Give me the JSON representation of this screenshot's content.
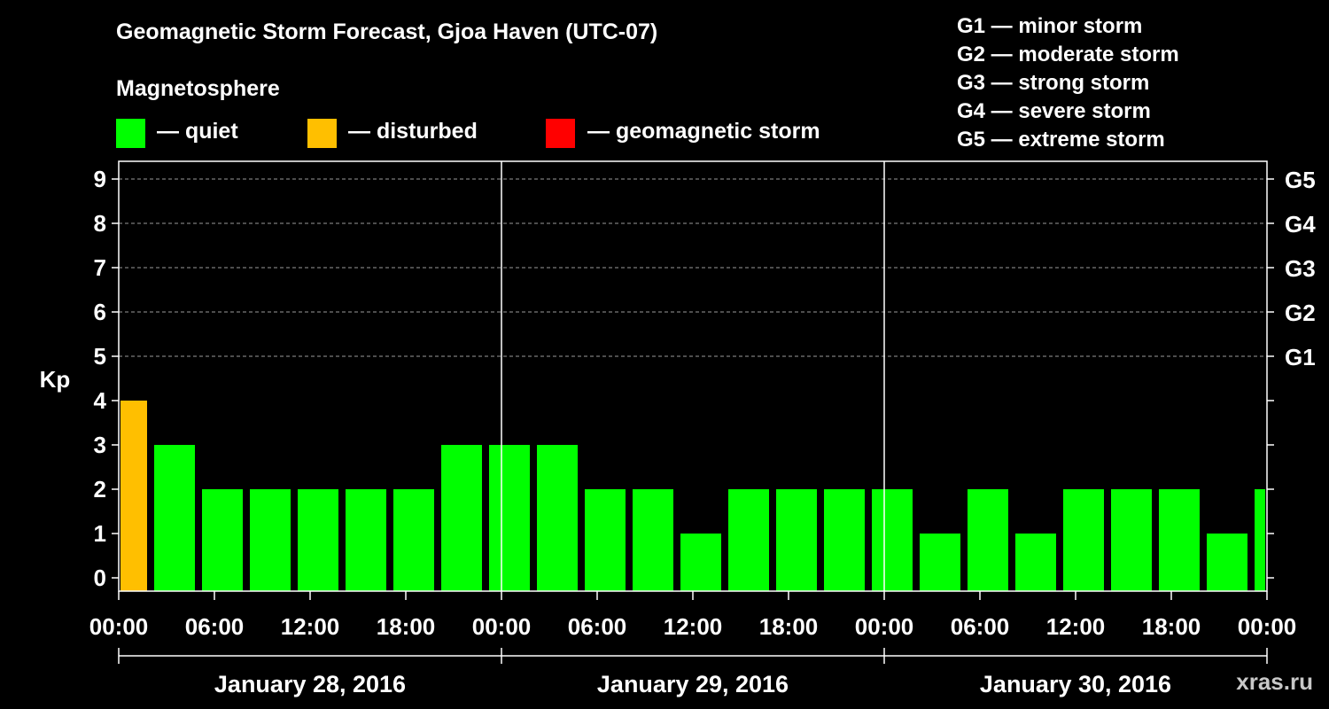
{
  "chart_data": {
    "type": "bar",
    "title": "Geomagnetic Storm Forecast, Gjoa Haven (UTC-07)",
    "ylabel": "Kp",
    "ylim": [
      0,
      9
    ],
    "yticks": [
      "0",
      "1",
      "2",
      "3",
      "4",
      "5",
      "6",
      "7",
      "8",
      "9"
    ],
    "g_levels": [
      {
        "kp": 5,
        "label": "G1"
      },
      {
        "kp": 6,
        "label": "G2"
      },
      {
        "kp": 7,
        "label": "G3"
      },
      {
        "kp": 8,
        "label": "G4"
      },
      {
        "kp": 9,
        "label": "G5"
      }
    ],
    "x_hours_range": [
      0,
      72
    ],
    "x_tick_labels": [
      "00:00",
      "06:00",
      "12:00",
      "18:00",
      "00:00",
      "06:00",
      "12:00",
      "18:00",
      "00:00",
      "06:00",
      "12:00",
      "18:00",
      "00:00"
    ],
    "days": [
      "January 28, 2016",
      "January 29, 2016",
      "January 30, 2016"
    ],
    "bars": [
      {
        "start": 0,
        "end": 2,
        "kp": 4,
        "status": "disturbed"
      },
      {
        "start": 2,
        "end": 5,
        "kp": 3,
        "status": "quiet"
      },
      {
        "start": 5,
        "end": 8,
        "kp": 2,
        "status": "quiet"
      },
      {
        "start": 8,
        "end": 11,
        "kp": 2,
        "status": "quiet"
      },
      {
        "start": 11,
        "end": 14,
        "kp": 2,
        "status": "quiet"
      },
      {
        "start": 14,
        "end": 17,
        "kp": 2,
        "status": "quiet"
      },
      {
        "start": 17,
        "end": 20,
        "kp": 2,
        "status": "quiet"
      },
      {
        "start": 20,
        "end": 23,
        "kp": 3,
        "status": "quiet"
      },
      {
        "start": 23,
        "end": 26,
        "kp": 3,
        "status": "quiet"
      },
      {
        "start": 26,
        "end": 29,
        "kp": 3,
        "status": "quiet"
      },
      {
        "start": 29,
        "end": 32,
        "kp": 2,
        "status": "quiet"
      },
      {
        "start": 32,
        "end": 35,
        "kp": 2,
        "status": "quiet"
      },
      {
        "start": 35,
        "end": 38,
        "kp": 1,
        "status": "quiet"
      },
      {
        "start": 38,
        "end": 41,
        "kp": 2,
        "status": "quiet"
      },
      {
        "start": 41,
        "end": 44,
        "kp": 2,
        "status": "quiet"
      },
      {
        "start": 44,
        "end": 47,
        "kp": 2,
        "status": "quiet"
      },
      {
        "start": 47,
        "end": 50,
        "kp": 2,
        "status": "quiet"
      },
      {
        "start": 50,
        "end": 53,
        "kp": 1,
        "status": "quiet"
      },
      {
        "start": 53,
        "end": 56,
        "kp": 2,
        "status": "quiet"
      },
      {
        "start": 56,
        "end": 59,
        "kp": 1,
        "status": "quiet"
      },
      {
        "start": 59,
        "end": 62,
        "kp": 2,
        "status": "quiet"
      },
      {
        "start": 62,
        "end": 65,
        "kp": 2,
        "status": "quiet"
      },
      {
        "start": 65,
        "end": 68,
        "kp": 2,
        "status": "quiet"
      },
      {
        "start": 68,
        "end": 71,
        "kp": 1,
        "status": "quiet"
      },
      {
        "start": 71,
        "end": 72,
        "kp": 2,
        "status": "quiet"
      }
    ]
  },
  "legend": {
    "heading": "Magnetosphere",
    "items": [
      {
        "key": "quiet",
        "label": "— quiet",
        "color": "#00ff00"
      },
      {
        "key": "disturbed",
        "label": "— disturbed",
        "color": "#ffbf00"
      },
      {
        "key": "storm",
        "label": "— geomagnetic storm",
        "color": "#ff0000"
      }
    ]
  },
  "g_scale": [
    "G1 — minor storm",
    "G2 — moderate storm",
    "G3 — strong storm",
    "G4 — severe storm",
    "G5 — extreme storm"
  ],
  "watermark": "xras.ru",
  "colors": {
    "quiet": "#00ff00",
    "disturbed": "#ffbf00",
    "storm": "#ff0000",
    "background": "#000000",
    "axis": "#ffffff",
    "grid": "#9a9a9a"
  }
}
